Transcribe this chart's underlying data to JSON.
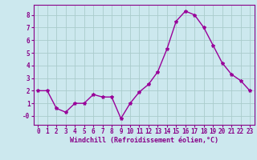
{
  "x": [
    0,
    1,
    2,
    3,
    4,
    5,
    6,
    7,
    8,
    9,
    10,
    11,
    12,
    13,
    14,
    15,
    16,
    17,
    18,
    19,
    20,
    21,
    22,
    23
  ],
  "y": [
    2.0,
    2.0,
    0.6,
    0.3,
    1.0,
    1.0,
    1.7,
    1.5,
    1.5,
    -0.2,
    1.0,
    1.9,
    2.5,
    3.5,
    5.3,
    7.5,
    8.3,
    8.0,
    7.0,
    5.6,
    4.2,
    3.3,
    2.8,
    2.0
  ],
  "line_color": "#990099",
  "marker": "*",
  "marker_size": 3,
  "bg_color": "#cce8ee",
  "grid_color": "#aacccc",
  "axis_color": "#880088",
  "spine_color": "#880088",
  "xlabel": "Windchill (Refroidissement éolien,°C)",
  "ytick_vals": [
    0,
    1,
    2,
    3,
    4,
    5,
    6,
    7,
    8
  ],
  "ytick_labels": [
    "-0",
    "1",
    "2",
    "3",
    "4",
    "5",
    "6",
    "7",
    "8"
  ],
  "ylim": [
    -0.7,
    8.8
  ],
  "xlim": [
    -0.5,
    23.5
  ],
  "tick_fontsize": 5.5,
  "xlabel_fontsize": 6.0
}
